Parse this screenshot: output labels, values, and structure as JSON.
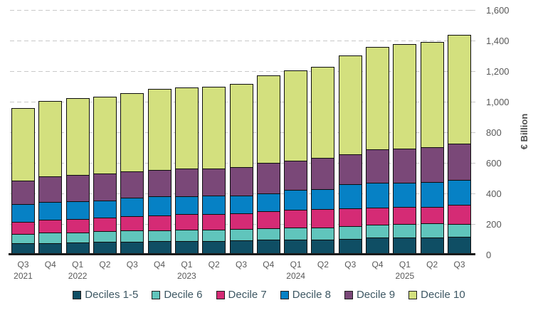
{
  "chart_data": {
    "type": "bar",
    "stacked": true,
    "ylabel": "€ Billion",
    "ylim": [
      0,
      1600
    ],
    "ytick_step": 200,
    "ytick_labels": [
      "0",
      "200",
      "400",
      "600",
      "800",
      "1,000",
      "1,200",
      "1,400",
      "1,600"
    ],
    "grid": "dashed-horizontal",
    "legend_position": "bottom",
    "categories": [
      {
        "quarter": "Q3",
        "year": "2021"
      },
      {
        "quarter": "Q4",
        "year": ""
      },
      {
        "quarter": "Q1",
        "year": "2022"
      },
      {
        "quarter": "Q2",
        "year": ""
      },
      {
        "quarter": "Q3",
        "year": ""
      },
      {
        "quarter": "Q4",
        "year": ""
      },
      {
        "quarter": "Q1",
        "year": "2023"
      },
      {
        "quarter": "Q2",
        "year": ""
      },
      {
        "quarter": "Q3",
        "year": ""
      },
      {
        "quarter": "Q4",
        "year": ""
      },
      {
        "quarter": "Q1",
        "year": "2024"
      },
      {
        "quarter": "Q2",
        "year": ""
      },
      {
        "quarter": "Q3",
        "year": ""
      },
      {
        "quarter": "Q4",
        "year": ""
      },
      {
        "quarter": "Q1",
        "year": "2025"
      },
      {
        "quarter": "Q2",
        "year": ""
      },
      {
        "quarter": "Q3",
        "year": ""
      }
    ],
    "series": [
      {
        "name": "Deciles 1-5",
        "color": "#0F4E64",
        "values": [
          69,
          72,
          74,
          77,
          80,
          83,
          86,
          86,
          88,
          91,
          94,
          92,
          100,
          105,
          108,
          108,
          111
        ]
      },
      {
        "name": "Decile 6",
        "color": "#60C5BC",
        "values": [
          63,
          67,
          68,
          70,
          72,
          72,
          74,
          74,
          75,
          78,
          80,
          82,
          83,
          84,
          86,
          91,
          86
        ]
      },
      {
        "name": "Decile 7",
        "color": "#D52B75",
        "values": [
          77,
          83,
          86,
          89,
          93,
          97,
          100,
          103,
          104,
          111,
          114,
          117,
          115,
          114,
          112,
          107,
          123
        ]
      },
      {
        "name": "Decile 8",
        "color": "#0681C5",
        "values": [
          118,
          117,
          117,
          114,
          121,
          125,
          118,
          118,
          114,
          115,
          129,
          132,
          157,
          161,
          161,
          164,
          165
        ]
      },
      {
        "name": "Decile 9",
        "color": "#7A4878",
        "values": [
          151,
          167,
          172,
          176,
          174,
          174,
          178,
          177,
          186,
          200,
          195,
          205,
          196,
          218,
          223,
          227,
          235
        ]
      },
      {
        "name": "Decile 10",
        "color": "#D3E07E",
        "values": [
          481,
          500,
          507,
          508,
          517,
          531,
          536,
          541,
          548,
          576,
          595,
          599,
          651,
          675,
          687,
          694,
          717
        ]
      }
    ],
    "approx_totals": [
      959,
      1006,
      1024,
      1034,
      1057,
      1082,
      1092,
      1099,
      1115,
      1171,
      1207,
      1227,
      1302,
      1357,
      1377,
      1391,
      1437
    ]
  },
  "colors": {
    "background": "#FFFFFF",
    "gridline": "#C9C9C9",
    "axis_line": "#1A1A1A",
    "bar_border": "#0D0D0D",
    "tick_label": "#595959",
    "legend_text": "#3D5763"
  }
}
